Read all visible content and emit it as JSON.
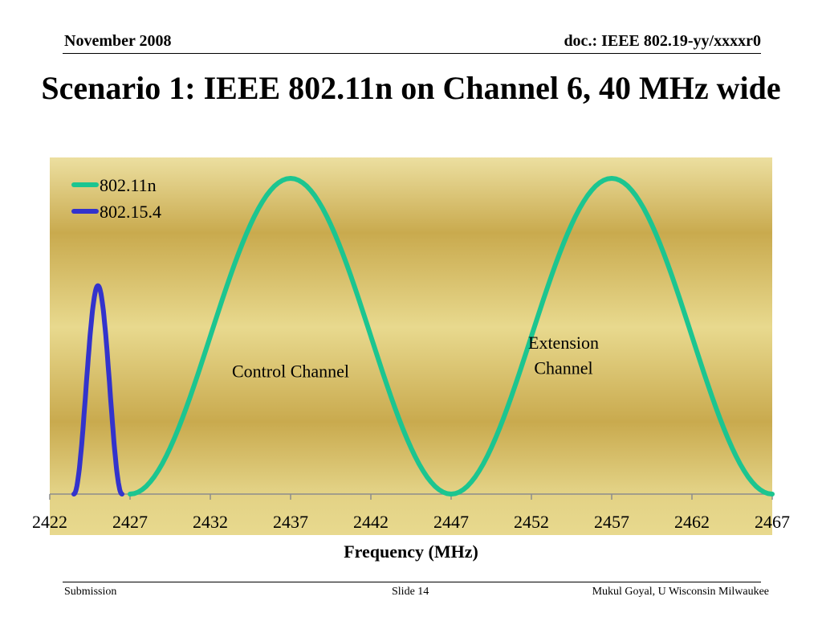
{
  "header": {
    "date": "November 2008",
    "doc": "doc.: IEEE 802.19-yy/xxxxr0"
  },
  "slide_title": "Scenario 1: IEEE 802.11n on Channel 6, 40 MHz wide",
  "footer": {
    "left": "Submission",
    "slide": "Slide 14",
    "author": "Mukul Goyal, U Wisconsin Milwaukee"
  },
  "colors": {
    "wifi": "#1cc590",
    "zigbee": "#3333cc",
    "bg_light": "#e8d98e",
    "bg_dark": "#c9aa4e"
  },
  "chart_data": {
    "type": "line",
    "title": "",
    "xlabel": "Frequency (MHz)",
    "ylabel": "",
    "xlim": [
      2422,
      2467
    ],
    "grid": false,
    "legend": "top-left",
    "xticks": [
      2422,
      2427,
      2432,
      2437,
      2442,
      2447,
      2452,
      2457,
      2462,
      2467
    ],
    "series": [
      {
        "name": "802.11n",
        "color": "#1cc590",
        "x": [
          2427,
          2437,
          2447,
          2457,
          2467
        ],
        "y": [
          0,
          1,
          0,
          1,
          0
        ]
      },
      {
        "name": "802.15.4",
        "color": "#3333cc",
        "x": [
          2423.5,
          2425,
          2426.5
        ],
        "y": [
          0,
          0.66,
          0
        ]
      }
    ],
    "annotations": [
      {
        "text": "Control Channel",
        "x": 2437,
        "y": 0.37
      },
      {
        "text": "Extension",
        "x": 2454,
        "y": 0.46
      },
      {
        "text": "Channel",
        "x": 2454,
        "y": 0.38
      }
    ]
  }
}
